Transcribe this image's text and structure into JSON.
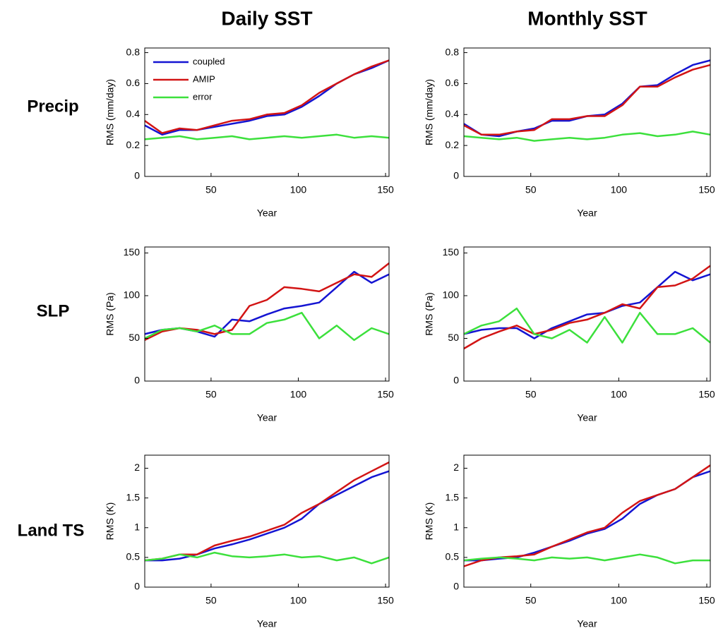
{
  "columns": [
    "Daily SST",
    "Monthly SST"
  ],
  "rows": [
    "Precip",
    "SLP",
    "Land TS"
  ],
  "chart_data": [
    {
      "type": "line",
      "xlabel": "Year",
      "ylabel": "RMS (mm/day)",
      "legend": "upper left",
      "x": [
        12,
        22,
        32,
        42,
        52,
        62,
        72,
        82,
        92,
        102,
        112,
        122,
        132,
        142,
        152
      ],
      "xlim": [
        12,
        152
      ],
      "xticks": [
        50,
        100,
        150
      ],
      "ylim": [
        0,
        0.83
      ],
      "yticks": [
        0,
        0.2,
        0.4,
        0.6,
        0.8
      ],
      "series": [
        {
          "name": "coupled",
          "color": "#1414d2",
          "values": [
            0.33,
            0.27,
            0.3,
            0.3,
            0.32,
            0.34,
            0.36,
            0.39,
            0.4,
            0.45,
            0.52,
            0.6,
            0.66,
            0.7,
            0.75
          ]
        },
        {
          "name": "AMIP",
          "color": "#d21414",
          "values": [
            0.36,
            0.28,
            0.31,
            0.3,
            0.33,
            0.36,
            0.37,
            0.4,
            0.41,
            0.46,
            0.54,
            0.6,
            0.66,
            0.71,
            0.75
          ]
        },
        {
          "name": "error",
          "color": "#3ce03c",
          "values": [
            0.24,
            0.25,
            0.26,
            0.24,
            0.25,
            0.26,
            0.24,
            0.25,
            0.26,
            0.25,
            0.26,
            0.27,
            0.25,
            0.26,
            0.25
          ]
        }
      ]
    },
    {
      "type": "line",
      "xlabel": "Year",
      "ylabel": "RMS (mm/day)",
      "x": [
        12,
        22,
        32,
        42,
        52,
        62,
        72,
        82,
        92,
        102,
        112,
        122,
        132,
        142,
        152
      ],
      "xlim": [
        12,
        152
      ],
      "xticks": [
        50,
        100,
        150
      ],
      "ylim": [
        0,
        0.83
      ],
      "yticks": [
        0,
        0.2,
        0.4,
        0.6,
        0.8
      ],
      "series": [
        {
          "color": "#1414d2",
          "values": [
            0.34,
            0.27,
            0.26,
            0.29,
            0.31,
            0.36,
            0.36,
            0.39,
            0.4,
            0.47,
            0.58,
            0.59,
            0.66,
            0.72,
            0.75
          ]
        },
        {
          "color": "#d21414",
          "values": [
            0.33,
            0.27,
            0.27,
            0.29,
            0.3,
            0.37,
            0.37,
            0.39,
            0.39,
            0.46,
            0.58,
            0.58,
            0.64,
            0.69,
            0.72
          ]
        },
        {
          "color": "#3ce03c",
          "values": [
            0.26,
            0.25,
            0.24,
            0.25,
            0.23,
            0.24,
            0.25,
            0.24,
            0.25,
            0.27,
            0.28,
            0.26,
            0.27,
            0.29,
            0.27
          ]
        }
      ]
    },
    {
      "type": "line",
      "xlabel": "Year",
      "ylabel": "RMS (Pa)",
      "x": [
        12,
        22,
        32,
        42,
        52,
        62,
        72,
        82,
        92,
        102,
        112,
        122,
        132,
        142,
        152
      ],
      "xlim": [
        12,
        152
      ],
      "xticks": [
        50,
        100,
        150
      ],
      "ylim": [
        0,
        157
      ],
      "yticks": [
        0,
        50,
        100,
        150
      ],
      "series": [
        {
          "color": "#1414d2",
          "values": [
            55,
            60,
            62,
            58,
            52,
            72,
            70,
            78,
            85,
            88,
            92,
            110,
            128,
            115,
            125
          ]
        },
        {
          "color": "#d21414",
          "values": [
            48,
            58,
            62,
            60,
            55,
            60,
            88,
            95,
            110,
            108,
            105,
            115,
            125,
            122,
            138
          ]
        },
        {
          "color": "#3ce03c",
          "values": [
            50,
            60,
            62,
            58,
            65,
            55,
            55,
            68,
            72,
            80,
            50,
            65,
            48,
            62,
            55
          ]
        }
      ]
    },
    {
      "type": "line",
      "xlabel": "Year",
      "ylabel": "RMS (Pa)",
      "x": [
        12,
        22,
        32,
        42,
        52,
        62,
        72,
        82,
        92,
        102,
        112,
        122,
        132,
        142,
        152
      ],
      "xlim": [
        12,
        152
      ],
      "xticks": [
        50,
        100,
        150
      ],
      "ylim": [
        0,
        157
      ],
      "yticks": [
        0,
        50,
        100,
        150
      ],
      "series": [
        {
          "color": "#1414d2",
          "values": [
            55,
            60,
            62,
            62,
            50,
            62,
            70,
            78,
            80,
            88,
            92,
            110,
            128,
            118,
            125
          ]
        },
        {
          "color": "#d21414",
          "values": [
            38,
            50,
            58,
            65,
            55,
            60,
            68,
            72,
            80,
            90,
            85,
            110,
            112,
            120,
            135
          ]
        },
        {
          "color": "#3ce03c",
          "values": [
            55,
            65,
            70,
            85,
            55,
            50,
            60,
            45,
            75,
            45,
            80,
            55,
            55,
            62,
            45
          ]
        }
      ]
    },
    {
      "type": "line",
      "xlabel": "Year",
      "ylabel": "RMS (K)",
      "x": [
        12,
        22,
        32,
        42,
        52,
        62,
        72,
        82,
        92,
        102,
        112,
        122,
        132,
        142,
        152
      ],
      "xlim": [
        12,
        152
      ],
      "xticks": [
        50,
        100,
        150
      ],
      "ylim": [
        0,
        2.22
      ],
      "yticks": [
        0,
        0.5,
        1,
        1.5,
        2
      ],
      "series": [
        {
          "color": "#1414d2",
          "values": [
            0.45,
            0.45,
            0.48,
            0.55,
            0.65,
            0.72,
            0.8,
            0.9,
            1.0,
            1.15,
            1.4,
            1.55,
            1.7,
            1.85,
            1.95
          ]
        },
        {
          "color": "#d21414",
          "values": [
            0.45,
            0.48,
            0.55,
            0.55,
            0.7,
            0.78,
            0.85,
            0.95,
            1.05,
            1.25,
            1.4,
            1.6,
            1.8,
            1.95,
            2.1
          ]
        },
        {
          "color": "#3ce03c",
          "values": [
            0.45,
            0.48,
            0.55,
            0.5,
            0.58,
            0.52,
            0.5,
            0.52,
            0.55,
            0.5,
            0.52,
            0.45,
            0.5,
            0.4,
            0.5
          ]
        }
      ]
    },
    {
      "type": "line",
      "xlabel": "Year",
      "ylabel": "RMS (K)",
      "x": [
        12,
        22,
        32,
        42,
        52,
        62,
        72,
        82,
        92,
        102,
        112,
        122,
        132,
        142,
        152
      ],
      "xlim": [
        12,
        152
      ],
      "xticks": [
        50,
        100,
        150
      ],
      "ylim": [
        0,
        2.22
      ],
      "yticks": [
        0,
        0.5,
        1,
        1.5,
        2
      ],
      "series": [
        {
          "color": "#1414d2",
          "values": [
            0.45,
            0.45,
            0.48,
            0.5,
            0.58,
            0.68,
            0.78,
            0.9,
            0.98,
            1.15,
            1.4,
            1.55,
            1.65,
            1.85,
            1.95
          ]
        },
        {
          "color": "#d21414",
          "values": [
            0.35,
            0.45,
            0.5,
            0.52,
            0.55,
            0.68,
            0.8,
            0.92,
            1.0,
            1.25,
            1.45,
            1.55,
            1.65,
            1.85,
            2.05
          ]
        },
        {
          "color": "#3ce03c",
          "values": [
            0.45,
            0.48,
            0.5,
            0.48,
            0.45,
            0.5,
            0.48,
            0.5,
            0.45,
            0.5,
            0.55,
            0.5,
            0.4,
            0.45,
            0.45
          ]
        }
      ]
    }
  ]
}
